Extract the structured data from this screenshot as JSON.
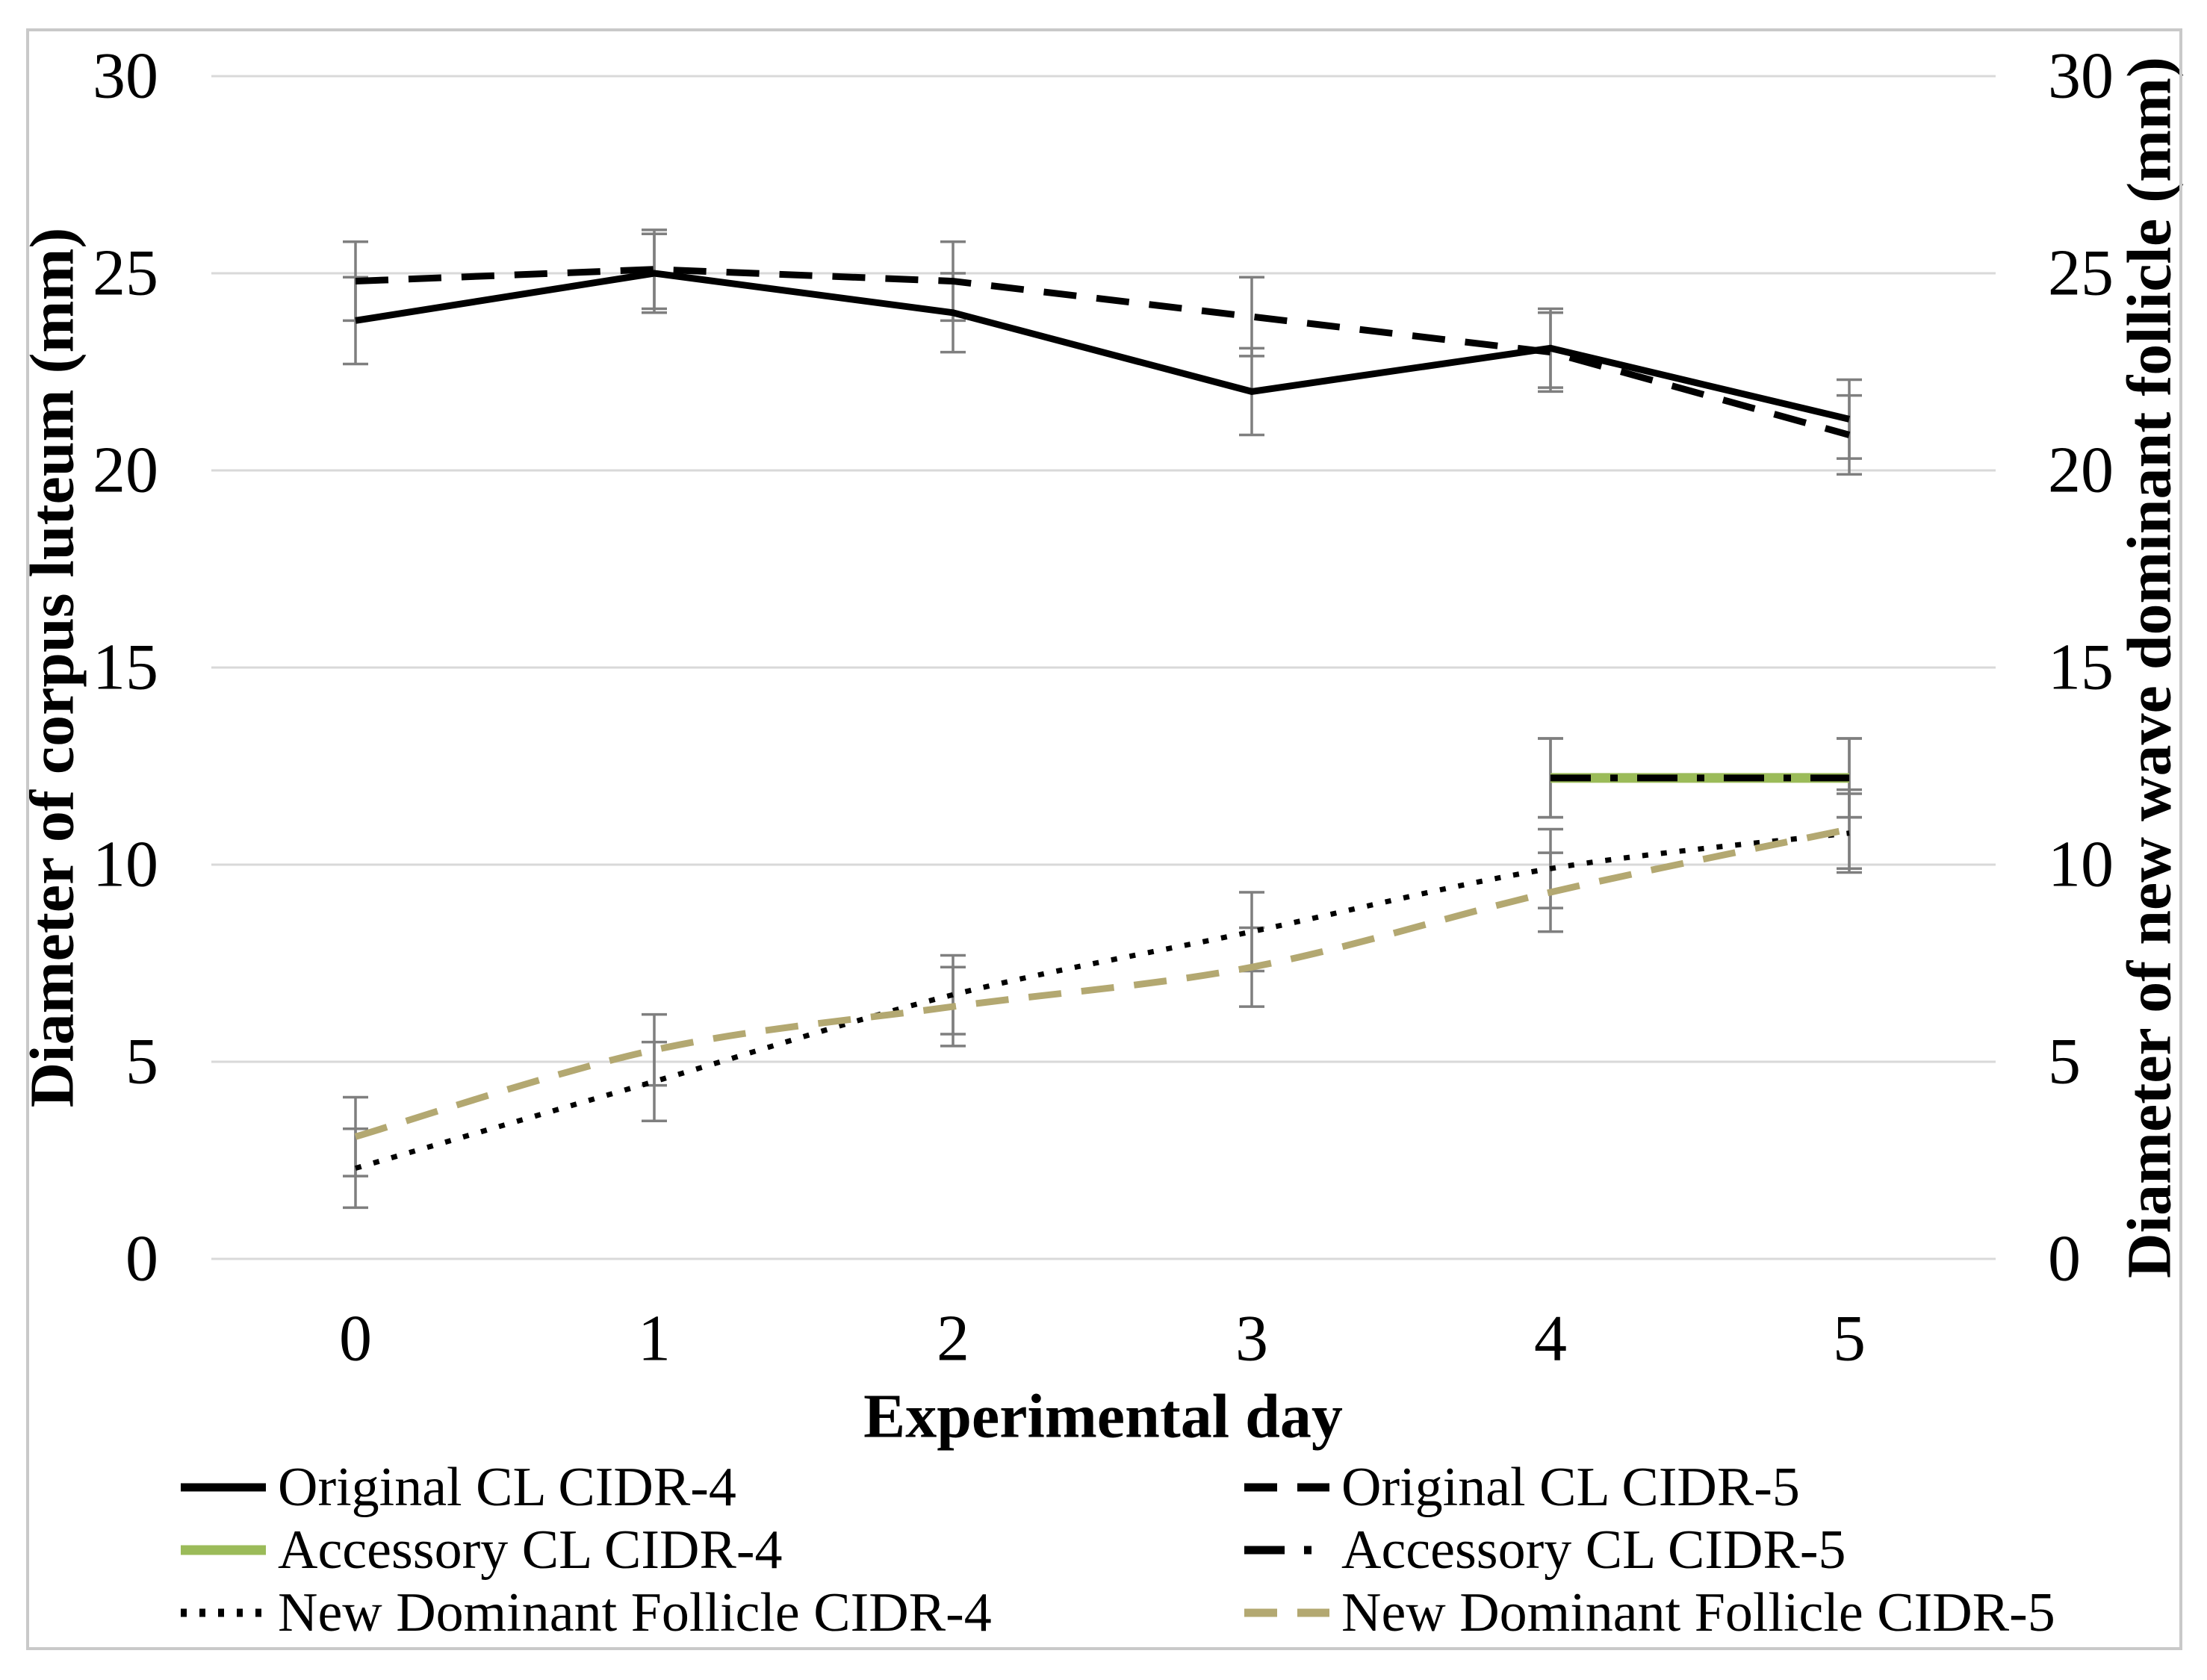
{
  "figure": {
    "left_axis_title": "Diameter of corpus luteum (mm)",
    "right_axis_title": "Diameter of new wave dominant follicle (mm)",
    "x_axis_label": "Experimental day"
  },
  "chart_data": {
    "type": "line",
    "title": "",
    "xlabel": "Experimental day",
    "ylabel_left": "Diameter of corpus luteum (mm)",
    "ylabel_right": "Diameter of new wave dominant follicle (mm)",
    "x": [
      0,
      1,
      2,
      3,
      4,
      5
    ],
    "x_tick_labels": [
      "0",
      "1",
      "2",
      "3",
      "4",
      "5"
    ],
    "ylim": [
      0,
      30
    ],
    "y_ticks": [
      0,
      5,
      10,
      15,
      20,
      25,
      30
    ],
    "y_tick_labels": [
      "0",
      "5",
      "10",
      "15",
      "20",
      "25",
      "30"
    ],
    "grid": true,
    "legend_position": "bottom",
    "series": [
      {
        "id": "orig4",
        "name": "Original CL CIDR-4",
        "axis": "left",
        "color": "#000000",
        "line": "solid",
        "smooth": false,
        "x": [
          0,
          1,
          2,
          3,
          4,
          5
        ],
        "values": [
          23.8,
          25.0,
          24.0,
          22.0,
          23.1,
          21.3
        ],
        "error": [
          1.1,
          1.0,
          1.0,
          1.1,
          1.0,
          1.0
        ]
      },
      {
        "id": "orig5",
        "name": "Original CL CIDR-5",
        "axis": "left",
        "color": "#000000",
        "line": "dashed",
        "smooth": false,
        "x": [
          0,
          1,
          2,
          3,
          4,
          5
        ],
        "values": [
          24.8,
          25.1,
          24.8,
          23.9,
          23.0,
          20.9
        ],
        "error": [
          1.0,
          1.0,
          1.0,
          1.0,
          1.0,
          1.0
        ]
      },
      {
        "id": "acc4",
        "name": "Accessory CL CIDR-4",
        "axis": "left",
        "color": "#9bbb59",
        "line": "solid",
        "smooth": false,
        "x": [
          4,
          5
        ],
        "values": [
          12.2,
          12.2
        ],
        "error": [
          1.0,
          1.0
        ]
      },
      {
        "id": "acc5",
        "name": "Accessory CL CIDR-5",
        "axis": "left",
        "color": "#000000",
        "line": "dashdot",
        "smooth": false,
        "x": [
          4,
          5
        ],
        "values": [
          12.2,
          12.2
        ],
        "error": [
          1.0,
          1.0
        ]
      },
      {
        "id": "ndf4",
        "name": "New Dominant Follicle CIDR-4",
        "axis": "right",
        "color": "#000000",
        "line": "dotted",
        "smooth": true,
        "x": [
          0,
          1,
          2,
          3,
          4,
          5
        ],
        "values": [
          2.3,
          4.5,
          6.7,
          8.3,
          9.9,
          10.8
        ],
        "error": [
          1.0,
          1.0,
          1.0,
          1.0,
          1.0,
          1.0
        ]
      },
      {
        "id": "ndf5",
        "name": "New Dominant Follicle CIDR-5",
        "axis": "right",
        "color": "#b3a871",
        "line": "dashed",
        "smooth": true,
        "x": [
          0,
          1,
          2,
          3,
          4,
          5
        ],
        "values": [
          3.1,
          5.3,
          6.4,
          7.4,
          9.3,
          10.9
        ],
        "error": [
          1.0,
          0.9,
          1.0,
          1.0,
          1.0,
          1.0
        ]
      }
    ],
    "legend_columns": [
      [
        "orig4",
        "acc4",
        "ndf4"
      ],
      [
        "orig5",
        "acc5",
        "ndf5"
      ]
    ]
  },
  "colors": {
    "grid_line": "#d9d9d9",
    "error_bar": "#7f7f7f",
    "figure_border": "#c9c9c9",
    "text": "#000000",
    "background": "#ffffff",
    "accessory_green": "#9bbb59",
    "follicle_tan": "#b3a871"
  }
}
